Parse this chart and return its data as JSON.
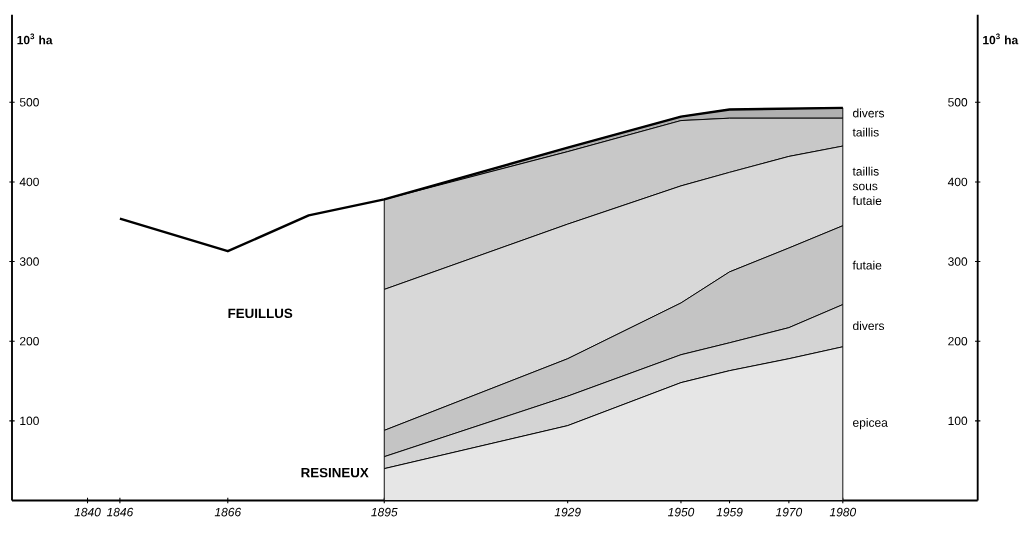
{
  "chart_data": {
    "type": "area",
    "stacked": true,
    "ylabel": "10$^{3}$ ha",
    "y2label": "10$^{3}$ ha",
    "xlim": [
      1826,
      2005
    ],
    "xticks": [
      1840,
      1846,
      1866,
      1895,
      1929,
      1950,
      1959,
      1970,
      1980
    ],
    "ylim": [
      0,
      610
    ],
    "yticks": [
      100,
      200,
      300,
      400,
      500
    ],
    "y2lim": [
      0,
      610
    ],
    "y2ticks": [
      100,
      200,
      300,
      400,
      500
    ],
    "x": [
      1895,
      1929,
      1950,
      1959,
      1970,
      1980
    ],
    "series": [
      {
        "name": "epicea",
        "color": "#e6e6e6",
        "values": [
          40,
          94,
          148,
          163,
          178,
          193
        ]
      },
      {
        "name": "divers",
        "color": "#d4d4d4",
        "values": [
          15,
          37,
          35,
          35,
          39,
          53
        ]
      },
      {
        "name": "futaie",
        "color": "#c4c4c4",
        "values": [
          33,
          47,
          65,
          89,
          100,
          99
        ]
      },
      {
        "name": "taillis sous futaie",
        "color": "#d8d8d8",
        "values": [
          177,
          169,
          147,
          125,
          115,
          100
        ]
      },
      {
        "name": "taillis",
        "color": "#c8c8c8",
        "values": [
          113,
          91,
          82,
          68,
          48,
          35
        ]
      },
      {
        "name": "divers",
        "color": "#b0b0b0",
        "values": [
          0,
          5,
          5,
          11,
          12,
          13
        ]
      },
      {
        "type": "line",
        "color": "#000000",
        "x": [
          1846,
          1866,
          1881,
          1895,
          1929,
          1950,
          1959,
          1980
        ],
        "values": [
          354,
          313,
          358,
          378,
          443,
          482,
          491,
          493
        ]
      }
    ],
    "annotations": [
      "FEUILLUS",
      "RESINEUX"
    ]
  }
}
